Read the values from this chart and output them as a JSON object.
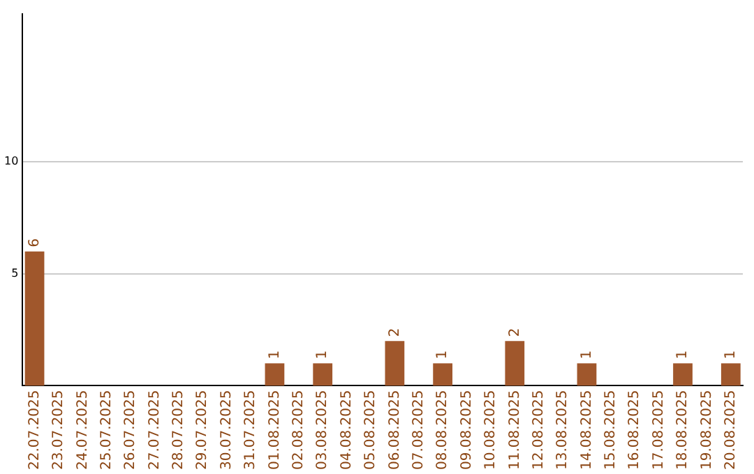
{
  "chart_data": {
    "type": "bar",
    "categories": [
      "22.07.2025",
      "23.07.2025",
      "24.07.2025",
      "25.07.2025",
      "26.07.2025",
      "27.07.2025",
      "28.07.2025",
      "29.07.2025",
      "30.07.2025",
      "31.07.2025",
      "01.08.2025",
      "02.08.2025",
      "03.08.2025",
      "04.08.2025",
      "05.08.2025",
      "06.08.2025",
      "07.08.2025",
      "08.08.2025",
      "09.08.2025",
      "10.08.2025",
      "11.08.2025",
      "12.08.2025",
      "13.08.2025",
      "14.08.2025",
      "15.08.2025",
      "16.08.2025",
      "17.08.2025",
      "18.08.2025",
      "19.08.2025",
      "20.08.2025"
    ],
    "values": [
      6,
      0,
      0,
      0,
      0,
      0,
      0,
      0,
      0,
      0,
      1,
      0,
      1,
      0,
      0,
      2,
      0,
      1,
      0,
      0,
      2,
      0,
      0,
      1,
      0,
      0,
      0,
      1,
      0,
      1
    ],
    "value_labels": [
      "6",
      null,
      null,
      null,
      null,
      null,
      null,
      null,
      null,
      null,
      "1",
      null,
      "1",
      null,
      null,
      "2",
      null,
      "1",
      null,
      null,
      "2",
      null,
      null,
      "1",
      null,
      null,
      null,
      "1",
      null,
      "1"
    ],
    "color": "#a0572c",
    "ylim": [
      0,
      16.6
    ],
    "yticks": [
      5,
      10
    ],
    "grid": "y"
  }
}
